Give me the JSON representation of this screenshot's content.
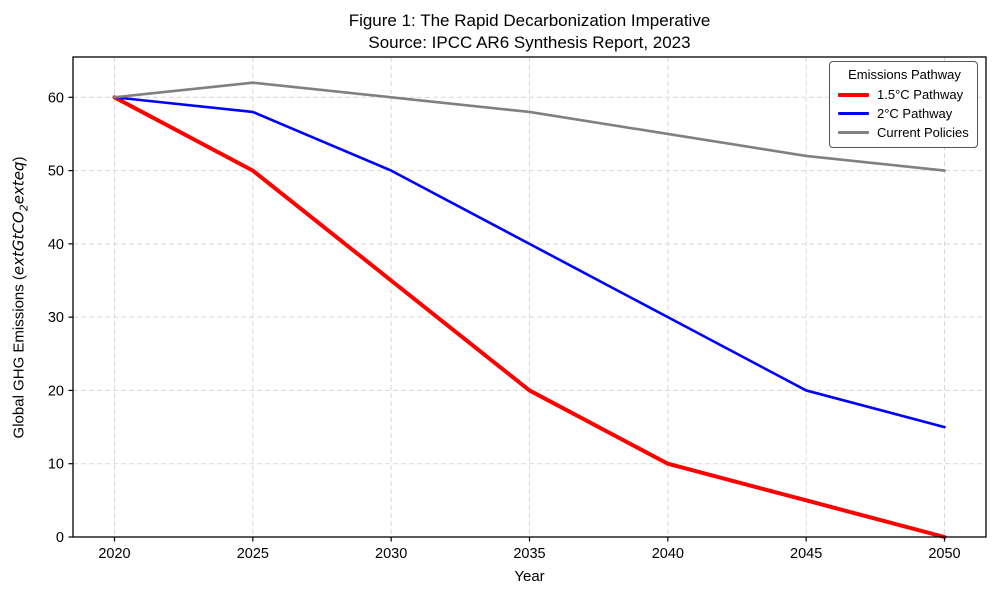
{
  "chart_data": {
    "type": "line",
    "title": "Figure 1: The Rapid Decarbonization Imperative",
    "subtitle": "Source: IPCC AR6 Synthesis Report, 2023",
    "xlabel": "Year",
    "ylabel": {
      "prefix": "Global GHG Emissions (",
      "math1": "extGtCO",
      "sub": "2",
      "math2": "exteq",
      "suffix": ")"
    },
    "legend_title": "Emissions Pathway",
    "legend_position": "upper right",
    "grid": true,
    "grid_style": "dashed",
    "x": [
      2020,
      2025,
      2030,
      2035,
      2040,
      2045,
      2050
    ],
    "series": [
      {
        "name": "1.5°C Pathway",
        "color": "#ff0000",
        "line_width": 4,
        "values": [
          60,
          50,
          35,
          20,
          10,
          5,
          0
        ]
      },
      {
        "name": "2°C Pathway",
        "color": "#0000ff",
        "line_width": 2.6,
        "values": [
          60,
          58,
          50,
          40,
          30,
          20,
          15
        ]
      },
      {
        "name": "Current Policies",
        "color": "#808080",
        "line_width": 2.6,
        "values": [
          60,
          62,
          60,
          58,
          55,
          52,
          50
        ]
      }
    ],
    "xticks": [
      2020,
      2025,
      2030,
      2035,
      2040,
      2045,
      2050
    ],
    "yticks": [
      0,
      10,
      20,
      30,
      40,
      50,
      60
    ],
    "xlim": [
      2018.5,
      2051.5
    ],
    "ylim": [
      0,
      65.5
    ],
    "colors": {
      "grid": "#d9d9d9",
      "spine": "#000000",
      "text": "#000000"
    }
  }
}
